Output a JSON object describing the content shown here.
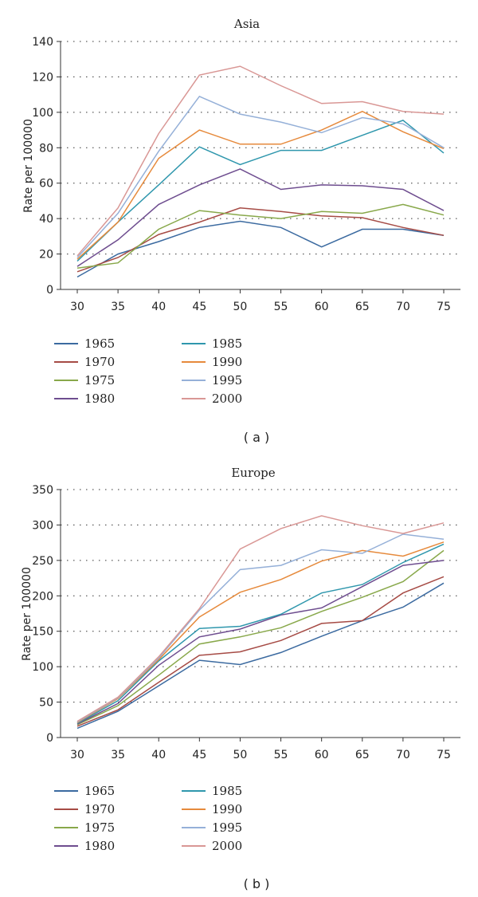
{
  "chart_data": [
    {
      "type": "line",
      "title": "Asia",
      "ylabel": "Rate per 100000",
      "xlabel": "",
      "caption": "( a )",
      "categories": [
        "30",
        "35",
        "40",
        "45",
        "50",
        "55",
        "60",
        "65",
        "70",
        "75"
      ],
      "ylim": [
        0,
        140
      ],
      "yticks": [
        "0",
        "20",
        "40",
        "60",
        "80",
        "100",
        "120",
        "140"
      ],
      "grid": true,
      "legend_position": "bottom",
      "series": [
        {
          "name": "1965",
          "color": "#3b6aa0",
          "values": [
            7,
            20,
            27,
            35,
            38.5,
            35,
            24,
            34,
            34,
            30.5
          ]
        },
        {
          "name": "1970",
          "color": "#a64b45",
          "values": [
            10,
            18,
            31,
            38,
            46,
            44,
            41.5,
            40.5,
            35,
            30.5
          ]
        },
        {
          "name": "1975",
          "color": "#88a84a",
          "values": [
            12,
            15,
            34,
            44.5,
            42,
            40,
            44,
            43,
            48,
            42
          ]
        },
        {
          "name": "1980",
          "color": "#6e4d8f",
          "values": [
            13,
            28,
            48,
            59,
            68,
            56.5,
            59,
            58.5,
            56.5,
            44.5
          ]
        },
        {
          "name": "1985",
          "color": "#2f97ad",
          "values": [
            16,
            38,
            59,
            80.5,
            70.5,
            78.5,
            78.5,
            87,
            95.5,
            77
          ]
        },
        {
          "name": "1990",
          "color": "#e68a3c",
          "values": [
            17,
            38,
            74,
            90,
            82,
            82,
            90,
            100.5,
            89,
            79.5
          ]
        },
        {
          "name": "1995",
          "color": "#95b0d8",
          "values": [
            18,
            43,
            78,
            109,
            99,
            94.5,
            88.5,
            97,
            93.5,
            80
          ]
        },
        {
          "name": "2000",
          "color": "#d99795",
          "values": [
            19,
            46,
            88,
            121,
            126,
            115,
            105,
            106,
            100.5,
            99
          ]
        }
      ]
    },
    {
      "type": "line",
      "title": "Europe",
      "ylabel": "Rate per 100000",
      "xlabel": "",
      "caption": "( b )",
      "categories": [
        "30",
        "35",
        "40",
        "45",
        "50",
        "55",
        "60",
        "65",
        "70",
        "75"
      ],
      "ylim": [
        0,
        350
      ],
      "yticks": [
        "0",
        "50",
        "100",
        "150",
        "200",
        "250",
        "300",
        "350"
      ],
      "grid": true,
      "legend_position": "bottom",
      "series": [
        {
          "name": "1965",
          "color": "#3b6aa0",
          "values": [
            13,
            37,
            73,
            109,
            103,
            120,
            143,
            165,
            184,
            218
          ]
        },
        {
          "name": "1970",
          "color": "#a64b45",
          "values": [
            16,
            39,
            78,
            116,
            121,
            137,
            161,
            165,
            204,
            227
          ]
        },
        {
          "name": "1975",
          "color": "#88a84a",
          "values": [
            18,
            45,
            88,
            132,
            142,
            155,
            178,
            198,
            220,
            264
          ]
        },
        {
          "name": "1980",
          "color": "#6e4d8f",
          "values": [
            19,
            48,
            102,
            142,
            153,
            173,
            183,
            213,
            243,
            250
          ]
        },
        {
          "name": "1985",
          "color": "#2f97ad",
          "values": [
            20,
            52,
            108,
            154,
            157,
            174,
            204,
            216,
            247,
            273
          ]
        },
        {
          "name": "1990",
          "color": "#e68a3c",
          "values": [
            21,
            55,
            110,
            170,
            205,
            223,
            249,
            264,
            256,
            276
          ]
        },
        {
          "name": "1995",
          "color": "#95b0d8",
          "values": [
            22,
            56,
            112,
            180,
            237,
            243,
            265,
            260,
            287,
            280
          ]
        },
        {
          "name": "2000",
          "color": "#d99795",
          "values": [
            23,
            57,
            114,
            182,
            266,
            295,
            313,
            299,
            288,
            303
          ]
        }
      ]
    }
  ]
}
